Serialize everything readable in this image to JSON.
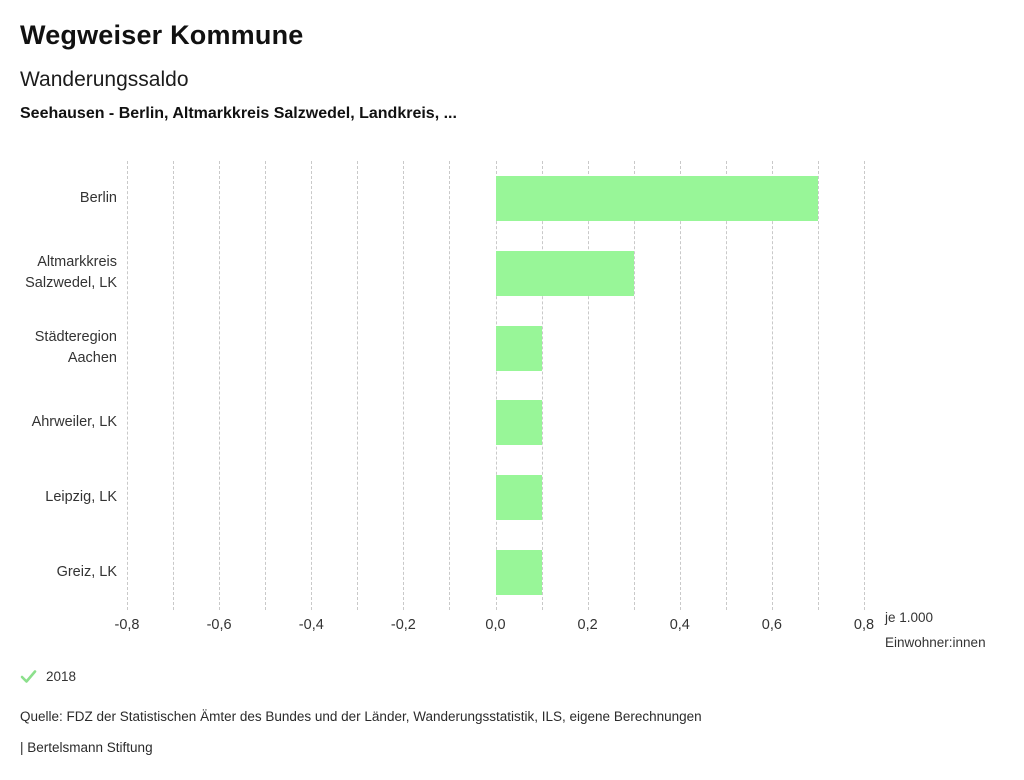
{
  "header": {
    "app_title": "Wegweiser Kommune",
    "chart_title": "Wanderungssaldo",
    "chart_subtitle": "Seehausen - Berlin, Altmarkkreis Salzwedel, Landkreis, ..."
  },
  "chart_data": {
    "type": "bar",
    "orientation": "horizontal",
    "title": "Wanderungssaldo",
    "subtitle": "Seehausen - Berlin, Altmarkkreis Salzwedel, Landkreis, ...",
    "categories": [
      "Berlin",
      "Altmarkkreis Salzwedel, LK",
      "Städteregion Aachen",
      "Ahrweiler, LK",
      "Leipzig, LK",
      "Greiz, LK"
    ],
    "category_label_lines": [
      [
        "Berlin"
      ],
      [
        "Altmarkkreis",
        "Salzwedel, LK"
      ],
      [
        "Städteregion",
        "Aachen"
      ],
      [
        "Ahrweiler, LK"
      ],
      [
        "Leipzig, LK"
      ],
      [
        "Greiz, LK"
      ]
    ],
    "series": [
      {
        "name": "2018",
        "values": [
          0.7,
          0.3,
          0.1,
          0.1,
          0.1,
          0.1
        ]
      }
    ],
    "xlim": [
      -0.8,
      0.8
    ],
    "x_tick_values": [
      -0.8,
      -0.6,
      -0.4,
      -0.2,
      0.0,
      0.2,
      0.4,
      0.6,
      0.8
    ],
    "x_tick_labels": [
      "-0,8",
      "-0,6",
      "-0,4",
      "-0,2",
      "0,0",
      "0,2",
      "0,4",
      "0,6",
      "0,8"
    ],
    "gridline_step": 0.1,
    "grid": true,
    "legend_position": "bottom-left",
    "xlabel_lines": [
      "je 1.000",
      "Einwohner:innen"
    ],
    "bar_color": "#98f698",
    "gridline_color": "#c9c9c9"
  },
  "legend": {
    "items": [
      {
        "label": "2018",
        "checked": true,
        "check_color": "#8ce08c",
        "check_icon": "checkmark-icon"
      }
    ]
  },
  "footer": {
    "source": "Quelle: FDZ der Statistischen Ämter des Bundes und der Länder, Wanderungsstatistik, ILS, eigene Berechnungen",
    "branding": "| Bertelsmann Stiftung"
  }
}
